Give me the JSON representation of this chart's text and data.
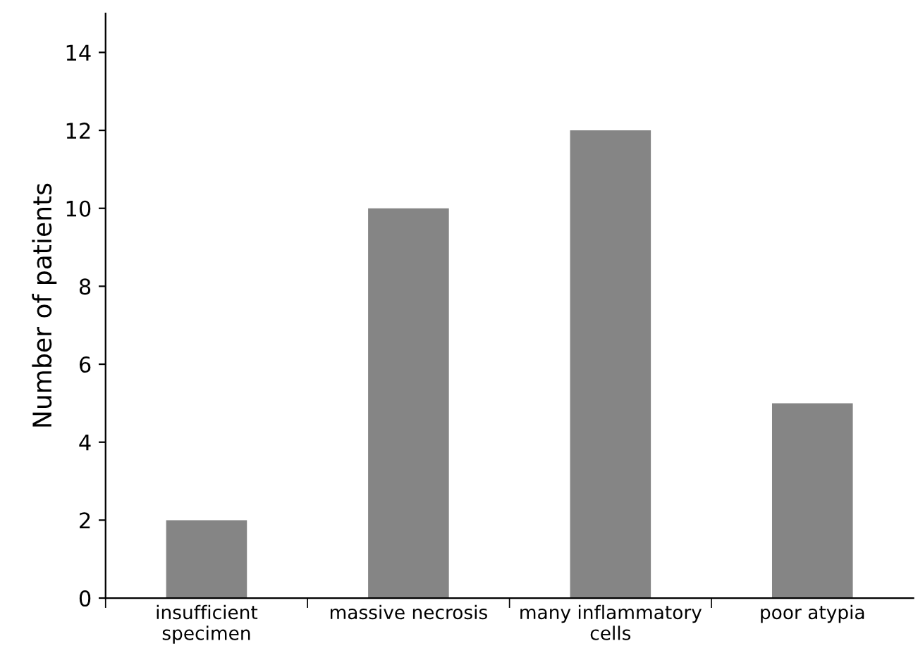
{
  "chart_data": {
    "type": "bar",
    "ylabel": "Number of patients",
    "categories": [
      "insufficient\nspecimen",
      "massive necrosis",
      "many inflammatory\ncells",
      "poor atypia"
    ],
    "values": [
      2,
      10,
      12,
      5
    ],
    "color": "#858585",
    "ylim": [
      0,
      15
    ],
    "yticks": [
      0,
      2,
      4,
      6,
      8,
      10,
      12,
      14
    ],
    "grid": false
  }
}
